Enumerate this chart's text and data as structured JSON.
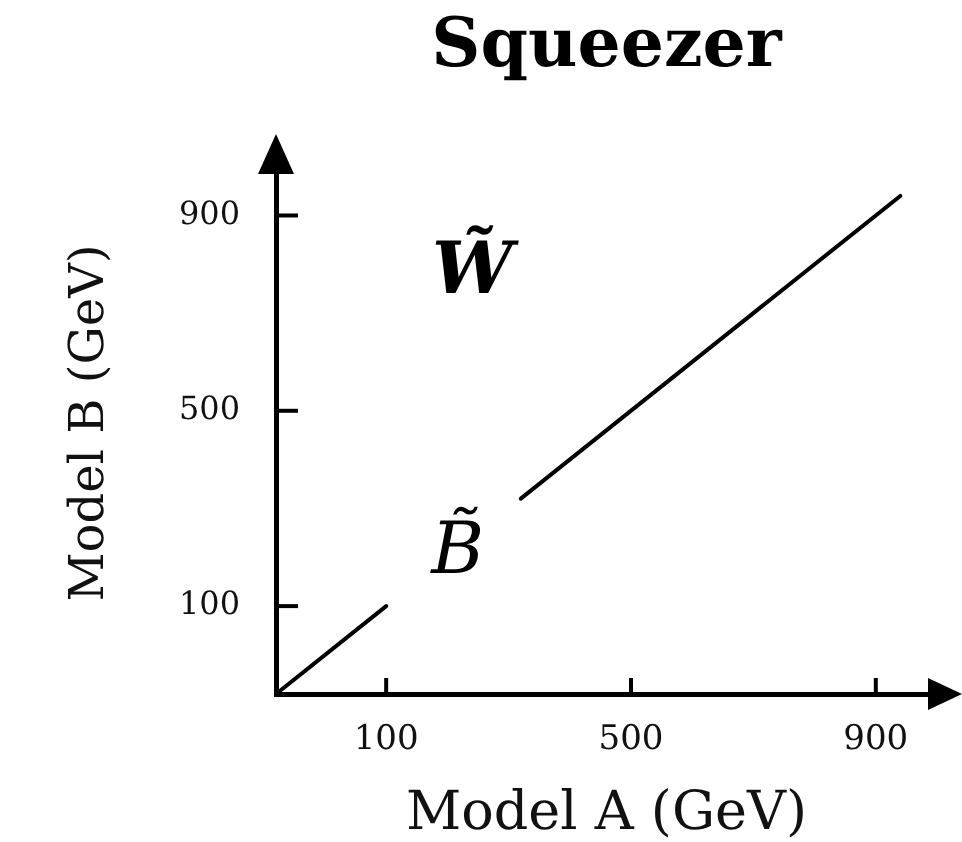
{
  "chart_data": {
    "type": "line",
    "title": "Squeezer",
    "xlabel": "Model A (GeV)",
    "ylabel": "Model B (GeV)",
    "x": [
      -80,
      100,
      210,
      320,
      940
    ],
    "values": [
      -80,
      100,
      null,
      320,
      940
    ],
    "color": "#000000",
    "marker": "none",
    "xlim": [
      -80,
      1000
    ],
    "ylim": [
      -80,
      1030
    ],
    "xticks": [
      100,
      500,
      900
    ],
    "yticks": [
      100,
      500,
      900
    ],
    "annotations": [
      "W̃",
      "B̃"
    ]
  }
}
